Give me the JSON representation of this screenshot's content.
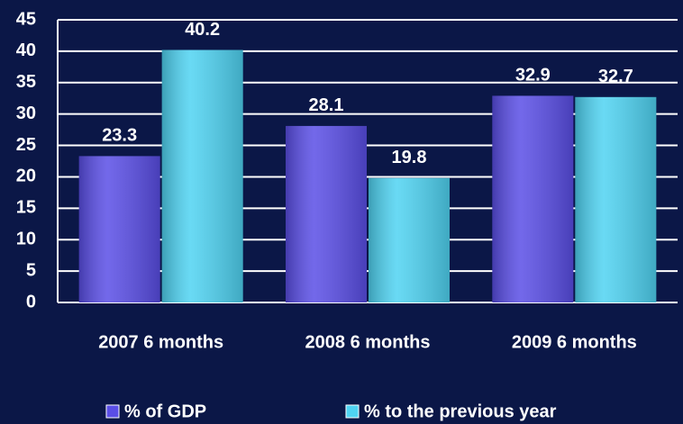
{
  "chart_data": {
    "type": "bar",
    "categories": [
      "2007 6 months",
      "2008 6 months",
      "2009 6 months"
    ],
    "series": [
      {
        "name": "% of GDP",
        "color": "#5a4ee6",
        "values": [
          23.3,
          28.1,
          32.9
        ]
      },
      {
        "name": "% to the previous year",
        "color": "#4fd3f2",
        "values": [
          40.2,
          19.8,
          32.7
        ]
      }
    ],
    "ylim": [
      0,
      45
    ],
    "yticks": [
      0,
      5,
      10,
      15,
      20,
      25,
      30,
      35,
      40,
      45
    ],
    "grid": true,
    "legend": "bottom"
  }
}
